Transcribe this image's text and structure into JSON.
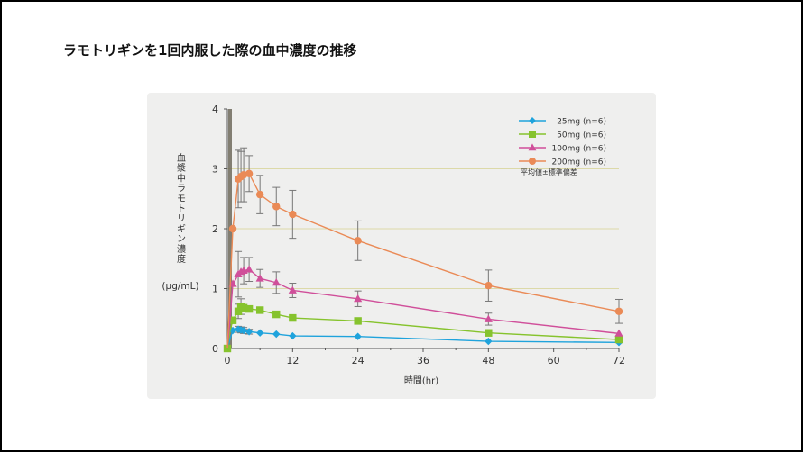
{
  "page": {
    "title": "ラモトリギンを1回内服した際の血中濃度の推移"
  },
  "colors": {
    "panel_background": "#efefee",
    "grid_line": "#dcd9a8",
    "axis": "#555555",
    "error_bar": "#777777",
    "y_axis_band": "#6f6a5c",
    "series_25": "#1fa3dc",
    "series_50": "#86c32d",
    "series_100": "#d04f9a",
    "series_200": "#ea8a56"
  },
  "chart_data": {
    "type": "line",
    "title": "ラモトリギンを1回内服した際の血中濃度の推移",
    "xlabel": "時間(hr)",
    "ylabel": "血漿中ラモトリギン濃度",
    "ylabel_unit": "(μg/mL)",
    "xlim": [
      0,
      72
    ],
    "ylim": [
      0,
      4
    ],
    "xticks": [
      0,
      12,
      24,
      36,
      48,
      60,
      72
    ],
    "yticks": [
      0,
      1,
      2,
      3,
      4
    ],
    "ygrid": [
      1,
      2,
      3
    ],
    "legend_position": "top-right",
    "legend_note": "平均値±標準偏差",
    "series": [
      {
        "name": "25mg (n=6)",
        "marker": "diamond",
        "color_key": "series_25",
        "x": [
          0,
          0.5,
          1,
          1.5,
          2,
          2.5,
          3,
          4,
          6,
          9,
          12,
          24,
          48,
          72
        ],
        "y": [
          0,
          0.16,
          0.3,
          0.31,
          0.32,
          0.31,
          0.3,
          0.28,
          0.26,
          0.24,
          0.21,
          0.2,
          0.12,
          0.1
        ],
        "err": [
          0,
          0,
          0,
          0,
          0.05,
          0.05,
          0.05,
          0.04,
          0,
          0,
          0,
          0,
          0,
          0
        ]
      },
      {
        "name": "50mg (n=6)",
        "marker": "square",
        "color_key": "series_50",
        "x": [
          0,
          0.5,
          1,
          1.5,
          2,
          2.5,
          3,
          4,
          6,
          9,
          12,
          24,
          48,
          72
        ],
        "y": [
          0,
          0.3,
          0.47,
          0.55,
          0.62,
          0.7,
          0.68,
          0.66,
          0.64,
          0.57,
          0.51,
          0.46,
          0.26,
          0.15
        ],
        "err": [
          0,
          0,
          0,
          0,
          0.12,
          0.13,
          0,
          0,
          0,
          0,
          0,
          0,
          0,
          0
        ]
      },
      {
        "name": "100mg (n=6)",
        "marker": "triangle",
        "color_key": "series_100",
        "x": [
          0,
          0.5,
          1,
          1.5,
          2,
          2.5,
          3,
          4,
          6,
          9,
          12,
          24,
          48,
          72
        ],
        "y": [
          0,
          0.5,
          1.08,
          1.15,
          1.24,
          1.28,
          1.3,
          1.32,
          1.17,
          1.1,
          0.97,
          0.83,
          0.49,
          0.25
        ],
        "err": [
          0,
          0,
          0,
          0,
          0.38,
          0,
          0.22,
          0.2,
          0.15,
          0.18,
          0.12,
          0.13,
          0.1,
          0
        ]
      },
      {
        "name": "200mg (n=6)",
        "marker": "circle",
        "color_key": "series_200",
        "x": [
          0,
          0.5,
          1,
          1.5,
          2,
          2.5,
          3,
          4,
          6,
          9,
          12,
          24,
          48,
          72
        ],
        "y": [
          0,
          1.0,
          2.0,
          2.4,
          2.83,
          2.87,
          2.9,
          2.92,
          2.57,
          2.37,
          2.24,
          1.8,
          1.05,
          0.62
        ],
        "err": [
          0,
          0,
          0,
          0,
          0.48,
          0.42,
          0.45,
          0.3,
          0.32,
          0.32,
          0.4,
          0.33,
          0.26,
          0.2
        ]
      }
    ]
  }
}
